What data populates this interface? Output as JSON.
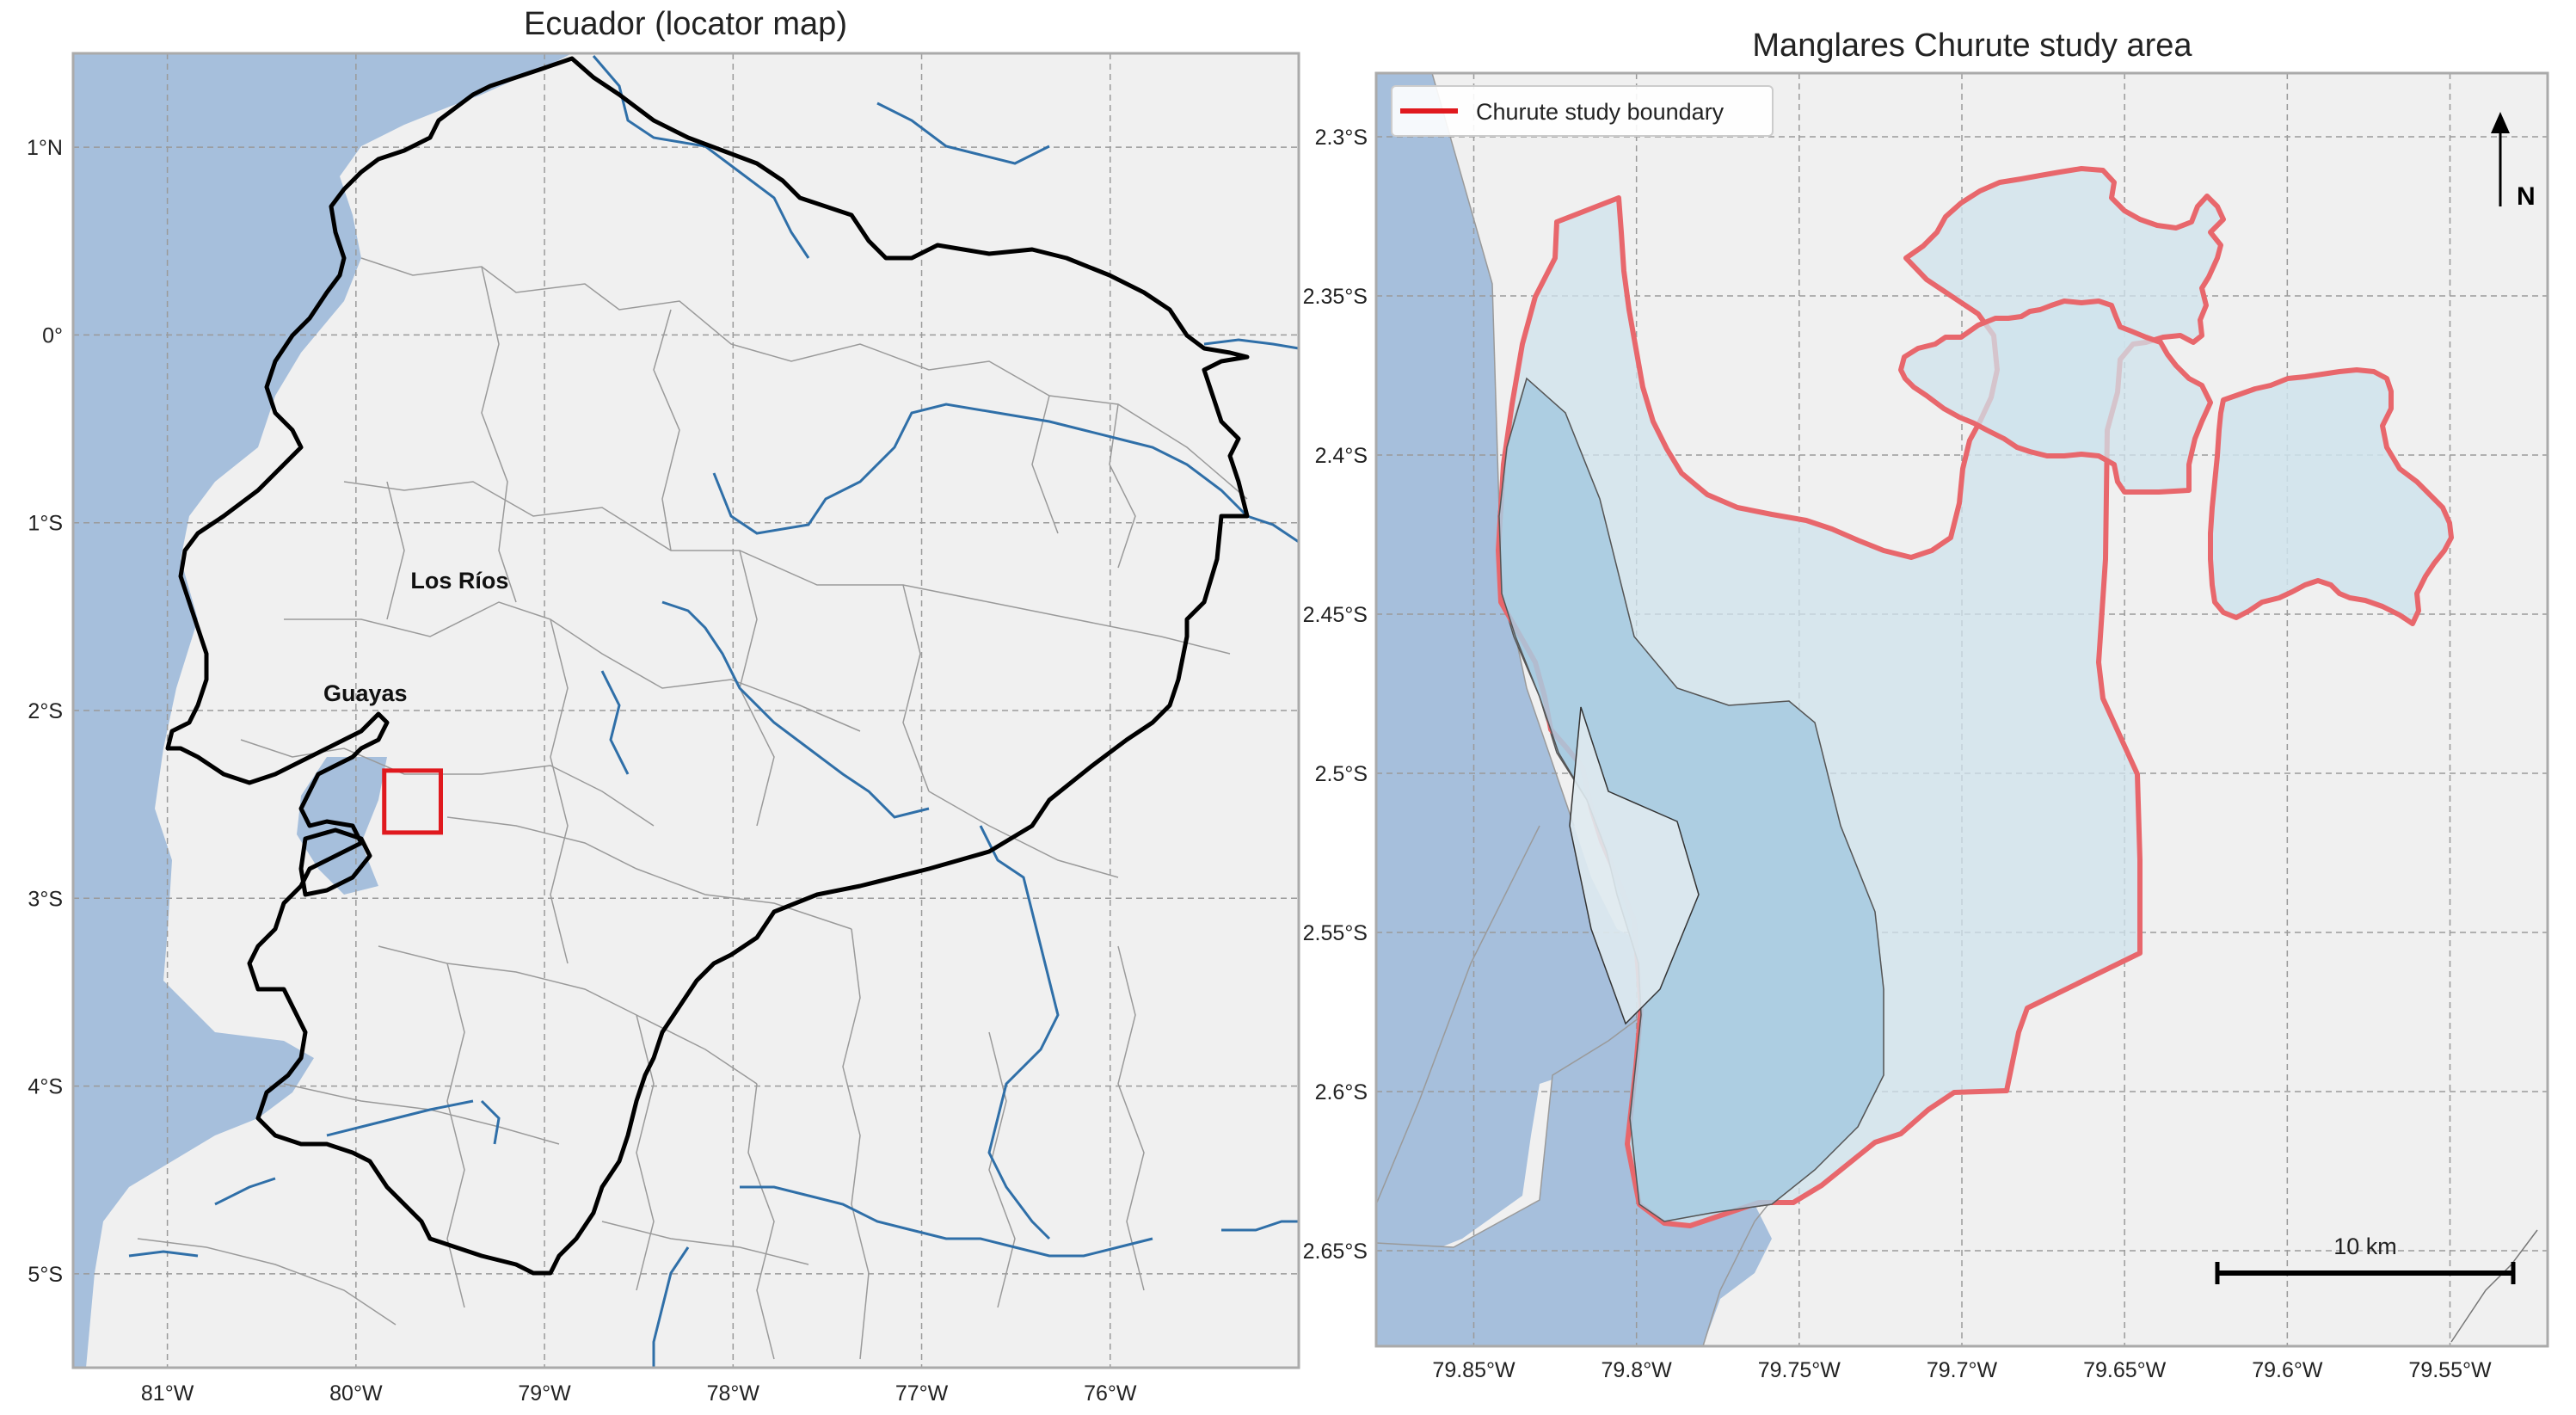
{
  "left_map": {
    "title": "Ecuador (locator map)",
    "lon_range": [
      -81.5,
      -75.0
    ],
    "lat_range": [
      -5.5,
      1.5
    ],
    "x_ticks": [
      {
        "value": -81,
        "label": "81°W"
      },
      {
        "value": -80,
        "label": "80°W"
      },
      {
        "value": -79,
        "label": "79°W"
      },
      {
        "value": -78,
        "label": "78°W"
      },
      {
        "value": -77,
        "label": "77°W"
      },
      {
        "value": -76,
        "label": "76°W"
      }
    ],
    "y_ticks": [
      {
        "value": 1,
        "label": "1°N"
      },
      {
        "value": 0,
        "label": "0°"
      },
      {
        "value": -1,
        "label": "1°S"
      },
      {
        "value": -2,
        "label": "2°S"
      },
      {
        "value": -3,
        "label": "3°S"
      },
      {
        "value": -4,
        "label": "4°S"
      },
      {
        "value": -5,
        "label": "5°S"
      }
    ],
    "province_labels": [
      {
        "name": "Los Ríos",
        "lon": -79.45,
        "lat": -1.35
      },
      {
        "name": "Guayas",
        "lon": -79.95,
        "lat": -1.95
      }
    ],
    "study_box": {
      "lon": [
        -79.85,
        -79.55
      ],
      "lat": [
        -2.65,
        -2.32
      ]
    },
    "colors": {
      "ocean": "#a6bfdc",
      "land": "#f0f0f0",
      "box": "#e0191e",
      "river": "#2f6fa8"
    }
  },
  "right_map": {
    "title": "Manglares Churute study area",
    "lon_range": [
      -79.88,
      -79.52
    ],
    "lat_range": [
      -2.68,
      -2.28
    ],
    "x_ticks": [
      {
        "value": -79.85,
        "label": "79.85°W"
      },
      {
        "value": -79.8,
        "label": "79.8°W"
      },
      {
        "value": -79.75,
        "label": "79.75°W"
      },
      {
        "value": -79.7,
        "label": "79.7°W"
      },
      {
        "value": -79.65,
        "label": "79.65°W"
      },
      {
        "value": -79.6,
        "label": "79.6°W"
      },
      {
        "value": -79.55,
        "label": "79.55°W"
      }
    ],
    "y_ticks": [
      {
        "value": -2.3,
        "label": "2.3°S"
      },
      {
        "value": -2.35,
        "label": "2.35°S"
      },
      {
        "value": -2.4,
        "label": "2.4°S"
      },
      {
        "value": -2.45,
        "label": "2.45°S"
      },
      {
        "value": -2.5,
        "label": "2.5°S"
      },
      {
        "value": -2.55,
        "label": "2.55°S"
      },
      {
        "value": -2.6,
        "label": "2.6°S"
      },
      {
        "value": -2.65,
        "label": "2.65°S"
      }
    ],
    "legend": {
      "label": "Churute study boundary",
      "placement": "top-left"
    },
    "north_arrow_label": "N",
    "scale_bar_label": "10 km",
    "colors": {
      "ocean": "#a6bfdc",
      "land": "#f0f0f0",
      "boundary": "#e8676c",
      "study_fill": "#cfe3ec",
      "overlap_fill": "#a8cbe0"
    }
  }
}
